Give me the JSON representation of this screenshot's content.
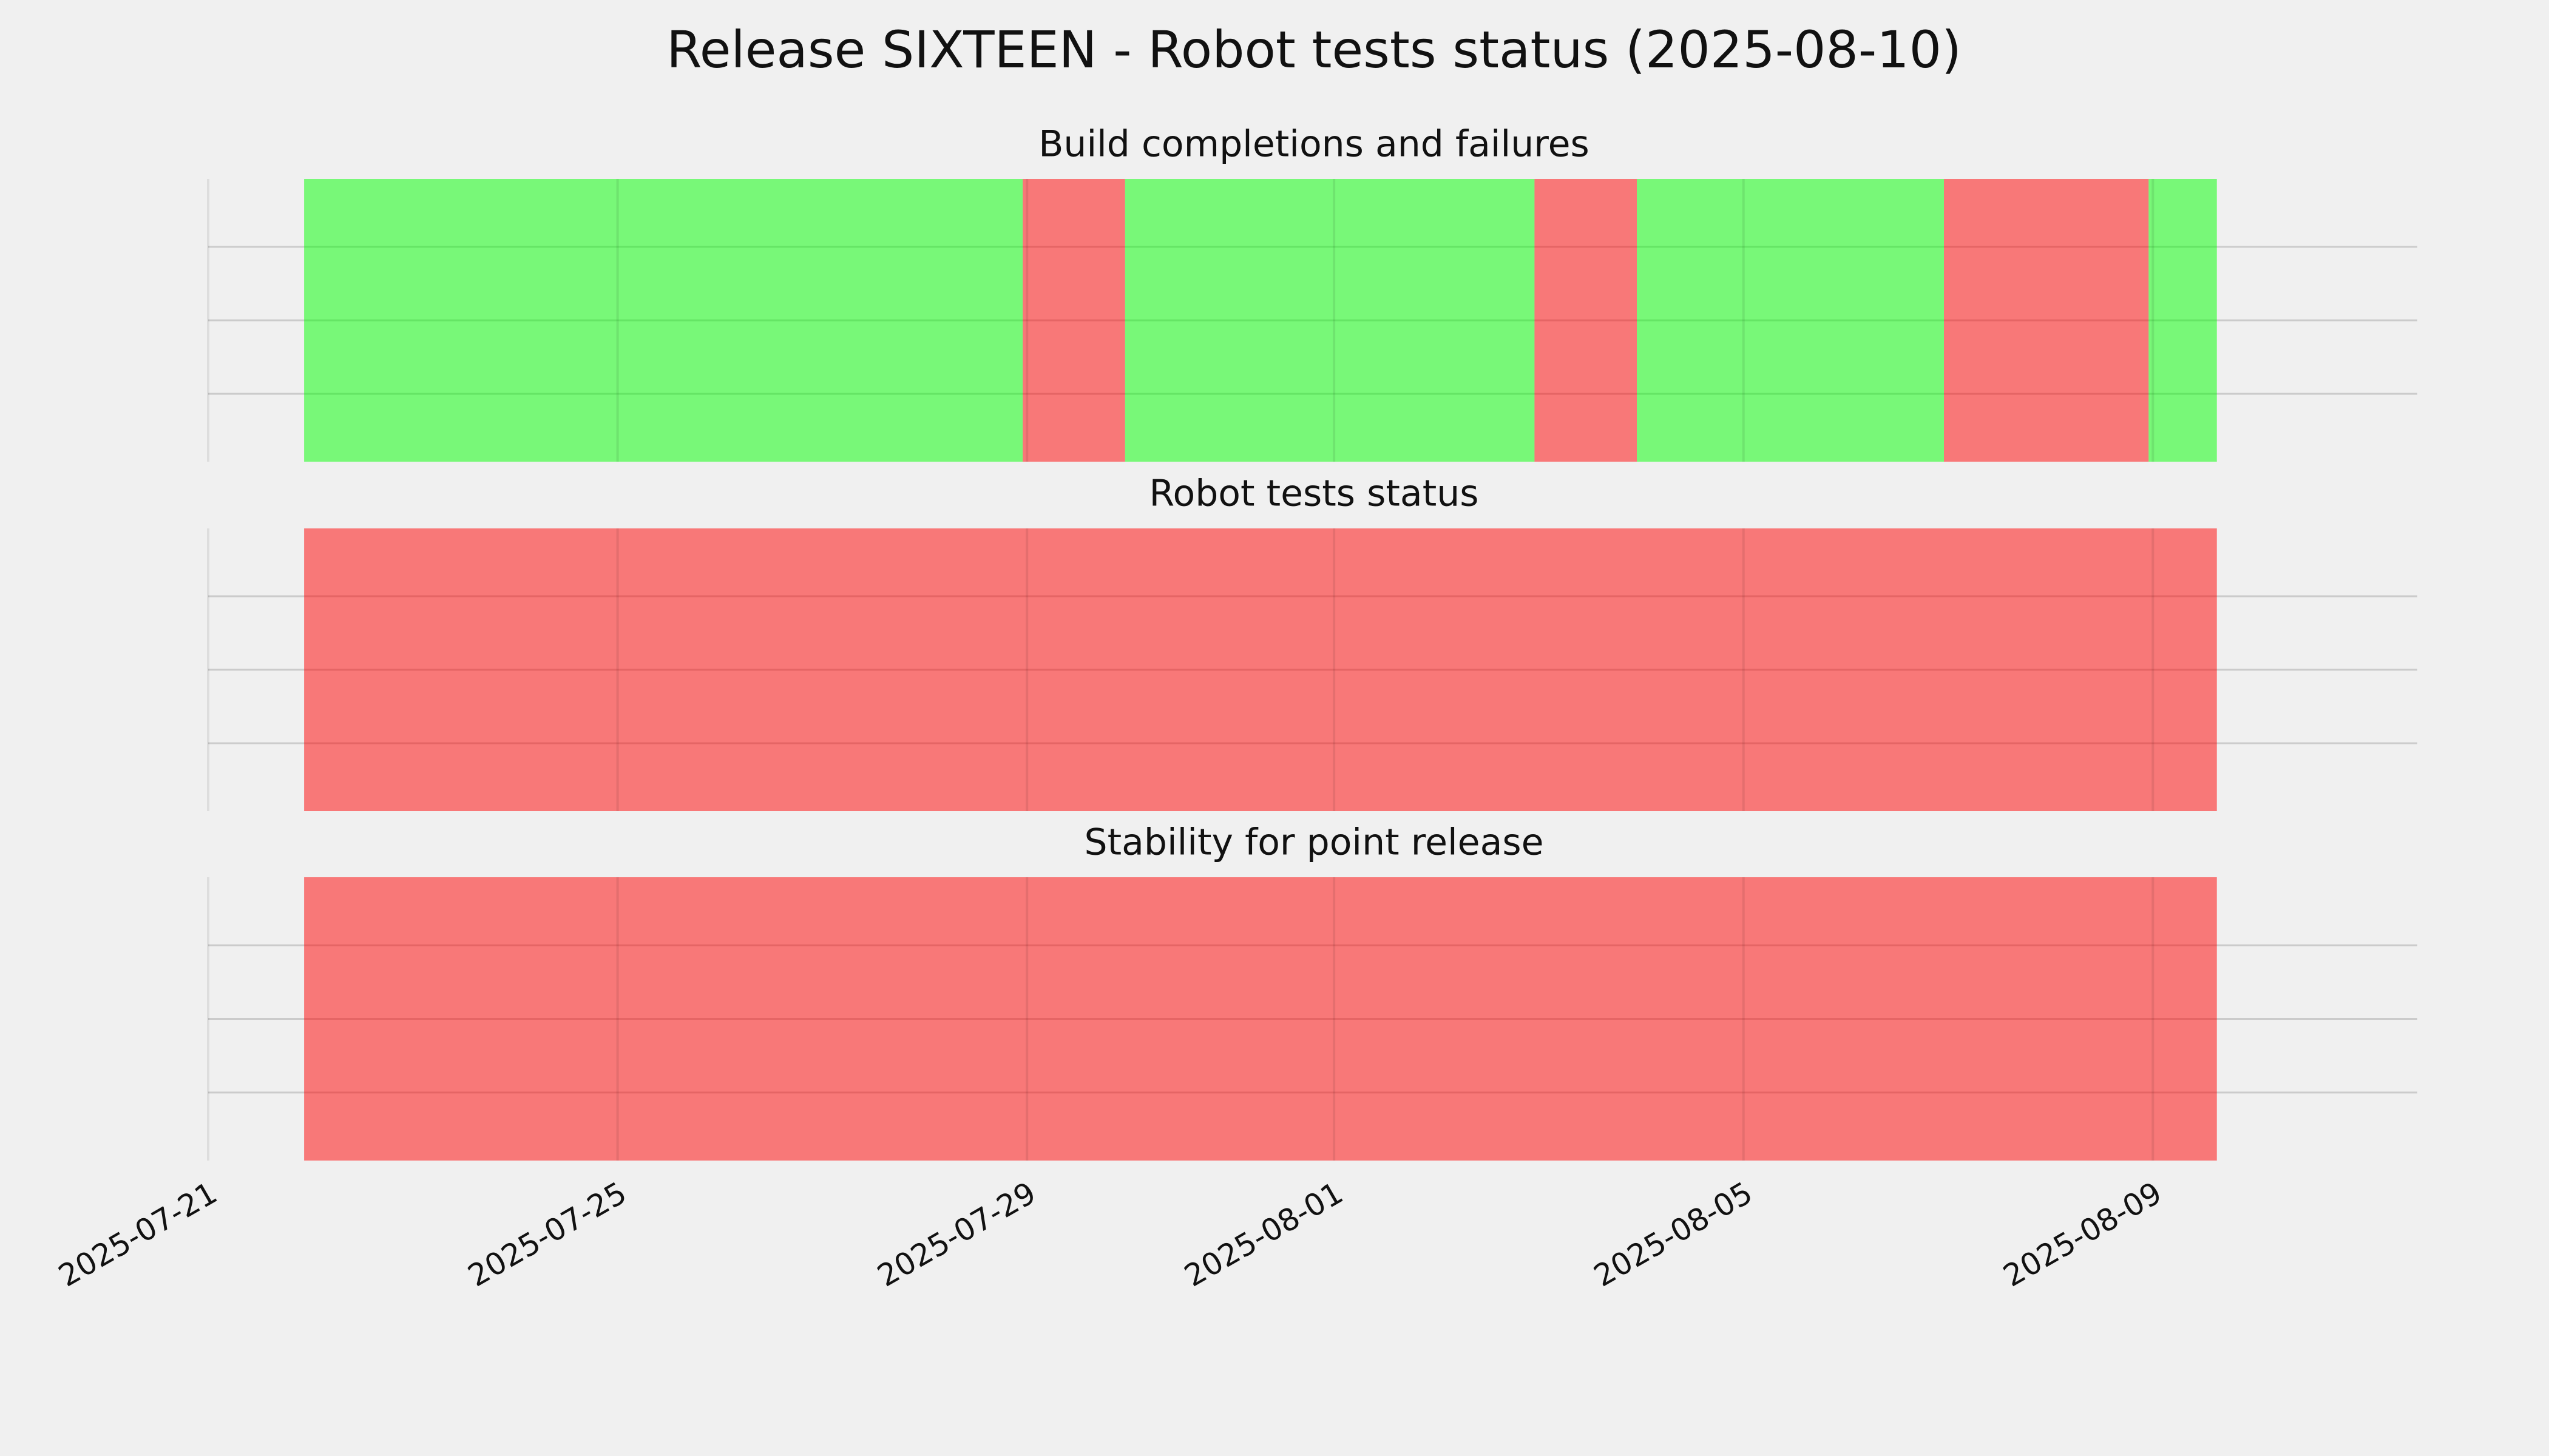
{
  "chart_data": {
    "type": "timeline",
    "title": "Release SIXTEEN - Robot tests status (2025-08-10)",
    "xlim": [
      "2025-07-21T00:00",
      "2025-08-11T14:00"
    ],
    "xticks": [
      "2025-07-21",
      "2025-07-25",
      "2025-07-29",
      "2025-08-01",
      "2025-08-05",
      "2025-08-09"
    ],
    "grid": true,
    "alpha": 0.5,
    "panels": [
      {
        "title": "Build completions and failures",
        "spans": [
          {
            "start": "2025-07-21T22:30",
            "end": "2025-07-28T23:00",
            "color": "#00ff00"
          },
          {
            "start": "2025-07-28T23:00",
            "end": "2025-07-29T23:00",
            "color": "#ff0000"
          },
          {
            "start": "2025-07-29T23:00",
            "end": "2025-08-02T23:00",
            "color": "#00ff00"
          },
          {
            "start": "2025-08-02T23:00",
            "end": "2025-08-03T23:00",
            "color": "#ff0000"
          },
          {
            "start": "2025-08-03T23:00",
            "end": "2025-08-06T23:00",
            "color": "#00ff00"
          },
          {
            "start": "2025-08-06T23:00",
            "end": "2025-08-08T23:00",
            "color": "#ff0000"
          },
          {
            "start": "2025-08-08T23:00",
            "end": "2025-08-09T15:00",
            "color": "#00ff00"
          }
        ]
      },
      {
        "title": "Robot tests status",
        "spans": [
          {
            "start": "2025-07-21T22:30",
            "end": "2025-08-09T15:00",
            "color": "#ff0000"
          }
        ]
      },
      {
        "title": "Stability for point release",
        "spans": [
          {
            "start": "2025-07-21T22:30",
            "end": "2025-08-09T15:00",
            "color": "#ff0000"
          }
        ]
      }
    ]
  }
}
